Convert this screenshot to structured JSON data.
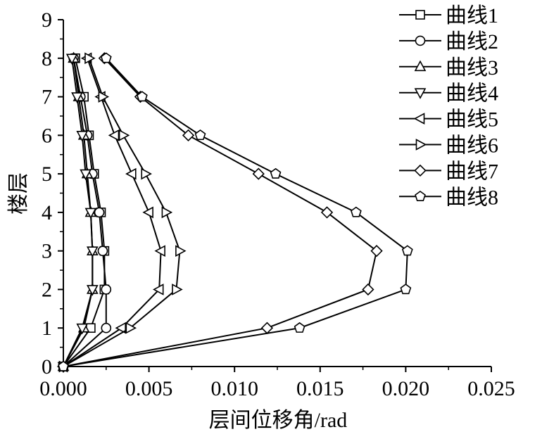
{
  "chart_data": {
    "type": "line",
    "xlabel": "层间位移角/rad",
    "ylabel": "楼层",
    "xlim": [
      0,
      0.025
    ],
    "ylim": [
      0,
      9
    ],
    "xticks": [
      0,
      0.005,
      0.01,
      0.015,
      0.02,
      0.025
    ],
    "xtick_labels": [
      "0.000",
      "0.005",
      "0.010",
      "0.015",
      "0.020",
      "0.025"
    ],
    "yticks": [
      0,
      1,
      2,
      3,
      4,
      5,
      6,
      7,
      8,
      9
    ],
    "ytick_labels": [
      "0",
      "1",
      "2",
      "3",
      "4",
      "5",
      "6",
      "7",
      "8",
      "9"
    ],
    "grid": false,
    "legend": "top-right",
    "y": [
      0,
      1,
      2,
      3,
      4,
      5,
      6,
      7,
      8
    ],
    "series": [
      {
        "name": "曲线1",
        "marker": "square",
        "x": [
          0,
          0.0016,
          0.0024,
          0.0024,
          0.0022,
          0.0018,
          0.0015,
          0.0012,
          0.0007
        ]
      },
      {
        "name": "曲线2",
        "marker": "circle",
        "x": [
          0,
          0.0025,
          0.0025,
          0.0023,
          0.0021,
          0.0017,
          0.0014,
          0.001,
          0.0006
        ]
      },
      {
        "name": "曲线3",
        "marker": "triangle-up",
        "x": [
          0,
          0.0012,
          0.0017,
          0.0017,
          0.0016,
          0.0014,
          0.0012,
          0.0009,
          0.0006
        ]
      },
      {
        "name": "曲线4",
        "marker": "triangle-down",
        "x": [
          0,
          0.0011,
          0.0017,
          0.0017,
          0.0016,
          0.0013,
          0.0011,
          0.0008,
          0.0005
        ]
      },
      {
        "name": "曲线5",
        "marker": "triangle-left",
        "x": [
          0,
          0.0034,
          0.0056,
          0.0057,
          0.005,
          0.004,
          0.003,
          0.0022,
          0.0014
        ]
      },
      {
        "name": "曲线6",
        "marker": "triangle-right",
        "x": [
          0,
          0.0039,
          0.0066,
          0.0068,
          0.006,
          0.0048,
          0.0035,
          0.0023,
          0.0015
        ]
      },
      {
        "name": "曲线7",
        "marker": "diamond",
        "x": [
          0,
          0.0119,
          0.0178,
          0.0183,
          0.0154,
          0.0114,
          0.0073,
          0.0045,
          0.0024
        ]
      },
      {
        "name": "曲线8",
        "marker": "pentagon",
        "x": [
          0,
          0.0138,
          0.02,
          0.0201,
          0.0171,
          0.0124,
          0.008,
          0.0046,
          0.0025
        ]
      }
    ]
  },
  "colors": {
    "axis": "#000000",
    "line": "#000000",
    "marker_fill": "#ffffff",
    "background": "#ffffff"
  }
}
